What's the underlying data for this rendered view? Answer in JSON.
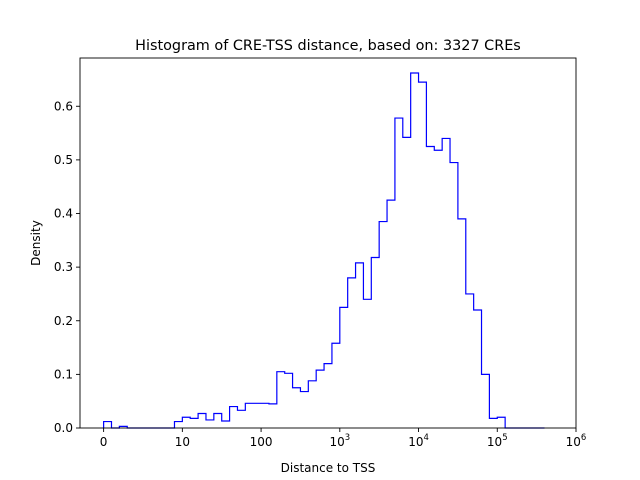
{
  "chart_data": {
    "type": "histogram",
    "title": "Histogram of CRE-TSS distance, based on: 3327 CREs",
    "xlabel": "Distance to TSS",
    "ylabel": "Density",
    "x_scale": "symlog",
    "xlim": [
      -0.3,
      6
    ],
    "ylim": [
      0,
      0.69
    ],
    "x_ticks": [
      {
        "value": 0,
        "label": "0"
      },
      {
        "value": 1,
        "label": "10"
      },
      {
        "value": 2,
        "label": "100"
      },
      {
        "value": 3,
        "label": "10",
        "sup": "3"
      },
      {
        "value": 4,
        "label": "10",
        "sup": "4"
      },
      {
        "value": 5,
        "label": "10",
        "sup": "5"
      },
      {
        "value": 6,
        "label": "10",
        "sup": "6"
      }
    ],
    "y_ticks": [
      {
        "value": 0.0,
        "label": "0.0"
      },
      {
        "value": 0.1,
        "label": "0.1"
      },
      {
        "value": 0.2,
        "label": "0.2"
      },
      {
        "value": 0.3,
        "label": "0.3"
      },
      {
        "value": 0.4,
        "label": "0.4"
      },
      {
        "value": 0.5,
        "label": "0.5"
      },
      {
        "value": 0.6,
        "label": "0.6"
      }
    ],
    "histtype": "step",
    "color": "#0000ff",
    "bin_edges": [
      0.0,
      0.1,
      0.2,
      0.3,
      0.4,
      0.5,
      0.6,
      0.7,
      0.8,
      0.9,
      1.0,
      1.1,
      1.2,
      1.3,
      1.4,
      1.5,
      1.6,
      1.7,
      1.8,
      1.9,
      2.0,
      2.1,
      2.2,
      2.3,
      2.4,
      2.5,
      2.6,
      2.7,
      2.8,
      2.9,
      3.0,
      3.1,
      3.2,
      3.3,
      3.4,
      3.5,
      3.6,
      3.7,
      3.8,
      3.9,
      4.0,
      4.1,
      4.2,
      4.3,
      4.4,
      4.5,
      4.6,
      4.7,
      4.8,
      4.9,
      5.0,
      5.1,
      5.2,
      5.3,
      5.4,
      5.5,
      5.6
    ],
    "values": [
      0.012,
      0.0,
      0.003,
      0.0,
      0.0,
      0.0,
      0.0,
      0.0,
      0.0,
      0.012,
      0.02,
      0.018,
      0.027,
      0.015,
      0.027,
      0.013,
      0.04,
      0.033,
      0.046,
      0.046,
      0.046,
      0.045,
      0.105,
      0.102,
      0.075,
      0.068,
      0.088,
      0.108,
      0.12,
      0.158,
      0.225,
      0.28,
      0.308,
      0.24,
      0.318,
      0.385,
      0.425,
      0.578,
      0.542,
      0.662,
      0.645,
      0.525,
      0.518,
      0.54,
      0.495,
      0.39,
      0.25,
      0.22,
      0.1,
      0.018,
      0.02,
      0.0,
      0.0,
      0.0,
      0.0,
      0.0
    ]
  }
}
